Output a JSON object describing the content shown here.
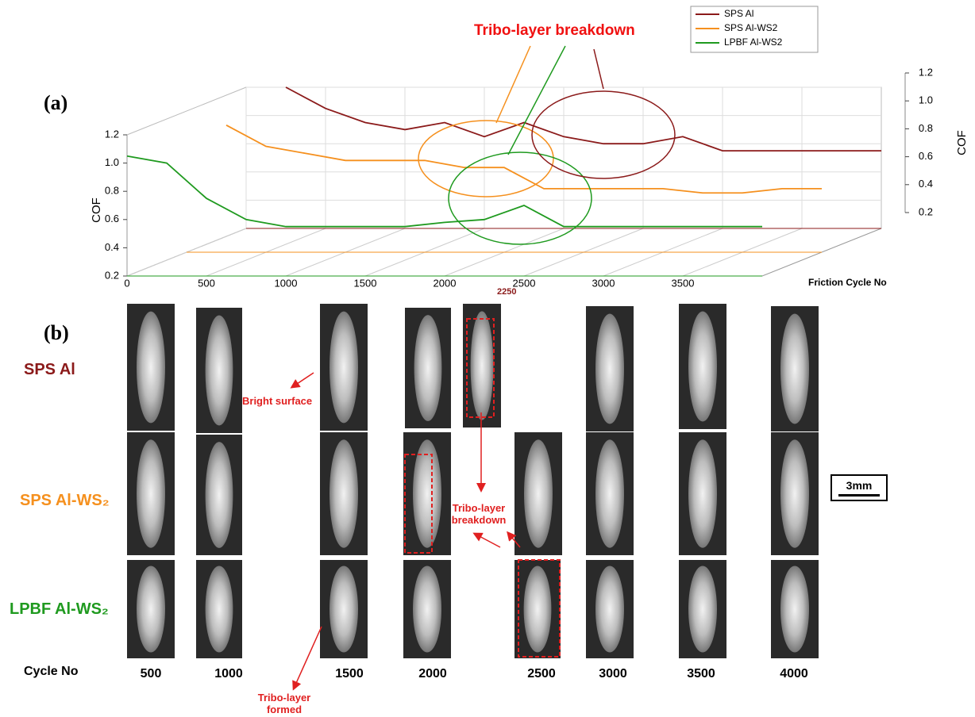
{
  "chart_data": {
    "type": "line",
    "panel_label": "(a)",
    "annotation": "Tribo-layer breakdown",
    "marker_label": "2250",
    "x_label": "Friction Cycle No",
    "y_label": "COF",
    "y2_label": "COF",
    "x": [
      0,
      250,
      500,
      750,
      1000,
      1250,
      1500,
      1750,
      2000,
      2250,
      2500,
      2750,
      3000,
      3250,
      3500,
      3750,
      4000
    ],
    "series": [
      {
        "name": "SPS Al",
        "color": "#8b1a1a",
        "values": [
          null,
          1.2,
          1.05,
          0.95,
          0.9,
          0.95,
          0.85,
          0.95,
          0.85,
          0.8,
          0.8,
          0.85,
          0.75,
          0.75,
          0.75,
          0.75,
          0.75
        ]
      },
      {
        "name": "SPS Al-WS2",
        "color": "#f5901e",
        "values": [
          null,
          1.1,
          0.95,
          0.9,
          0.85,
          0.85,
          0.85,
          0.8,
          0.8,
          0.65,
          0.65,
          0.65,
          0.65,
          0.62,
          0.62,
          0.65,
          0.65
        ]
      },
      {
        "name": "LPBF Al-WS2",
        "color": "#1f9a1f",
        "values": [
          1.05,
          1.0,
          0.75,
          0.6,
          0.55,
          0.55,
          0.55,
          0.55,
          0.58,
          0.6,
          0.7,
          0.55,
          0.55,
          0.55,
          0.55,
          0.55,
          0.55
        ]
      }
    ],
    "xlim": [
      0,
      4000
    ],
    "xticks": [
      0,
      500,
      1000,
      1500,
      2000,
      2500,
      3000,
      3500
    ],
    "ylim": [
      0.2,
      1.2
    ],
    "yticks": [
      0.2,
      0.4,
      0.6,
      0.8,
      {
        "value": 1,
        "label": "1.0"
      },
      1.2
    ],
    "y2lim": [
      0.2,
      1.2
    ],
    "y2ticks": [
      0.2,
      0.4,
      0.6,
      0.8,
      {
        "value": 1,
        "label": "1.0"
      },
      1.2
    ],
    "grid": true
  },
  "panel_b": {
    "label": "(b)",
    "rows": [
      "SPS Al",
      "SPS Al-WS₂",
      "LPBF Al-WS₂"
    ],
    "cycle_label": "Cycle No",
    "columns": [
      "500",
      "1000",
      "1500",
      "2000",
      "2500",
      "3000",
      "3500",
      "4000"
    ],
    "annotations": [
      "Bright surface",
      "Tribo-layer breakdown",
      "Tribo-layer formed"
    ],
    "scale_bar": "3mm"
  }
}
